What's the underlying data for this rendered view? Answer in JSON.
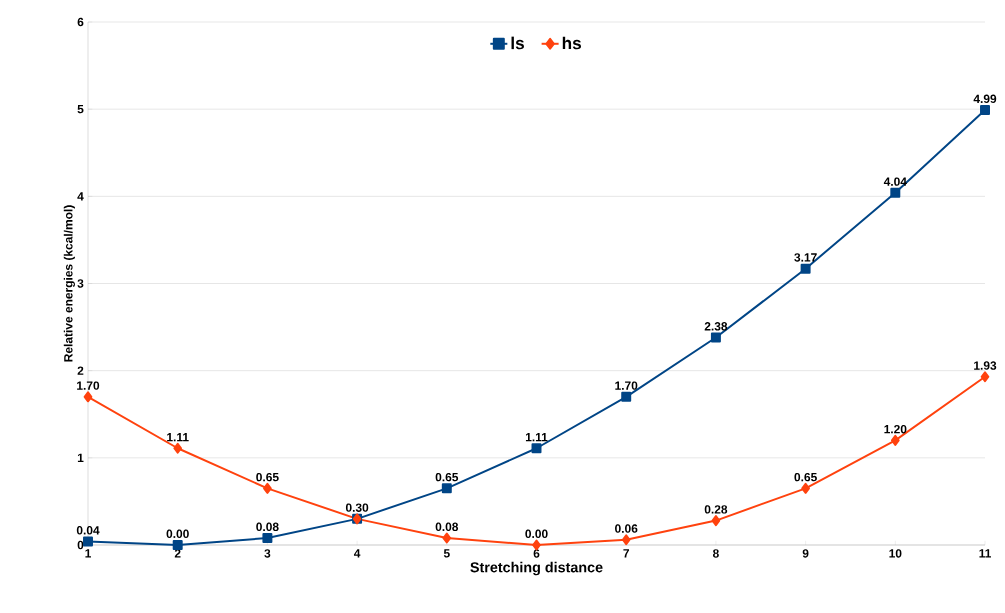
{
  "chart_data": {
    "type": "line",
    "xlabel": "Stretching distance",
    "ylabel": "Relative energies (kcal/mol)",
    "x": [
      1,
      2,
      3,
      4,
      5,
      6,
      7,
      8,
      9,
      10,
      11
    ],
    "series": [
      {
        "name": "ls",
        "color": "#004586",
        "marker": "square",
        "values": [
          0.04,
          0.0,
          0.08,
          0.3,
          0.65,
          1.11,
          1.7,
          2.38,
          3.17,
          4.04,
          4.99
        ],
        "value_labels": [
          "0.04",
          "0.00",
          "0.08",
          "0.30",
          "0.65",
          "1.11",
          "1.70",
          "2.38",
          "3.17",
          "4.04",
          "4.99"
        ]
      },
      {
        "name": "hs",
        "color": "#ff420e",
        "marker": "diamond",
        "values": [
          1.7,
          1.11,
          0.65,
          0.3,
          0.08,
          0.0,
          0.06,
          0.28,
          0.65,
          1.2,
          1.93
        ],
        "value_labels": [
          "1.70",
          "1.11",
          "0.65",
          null,
          "0.08",
          "0.00",
          "0.06",
          "0.28",
          "0.65",
          "1.20",
          "1.93"
        ]
      }
    ],
    "xlim": [
      1,
      11
    ],
    "xticks": [
      1,
      2,
      3,
      4,
      5,
      6,
      7,
      8,
      9,
      10,
      11
    ],
    "ylim": [
      0,
      6
    ],
    "yticks": [
      0,
      1,
      2,
      3,
      4,
      5,
      6
    ],
    "grid": "y",
    "legend": "top",
    "line_style": "solid"
  }
}
